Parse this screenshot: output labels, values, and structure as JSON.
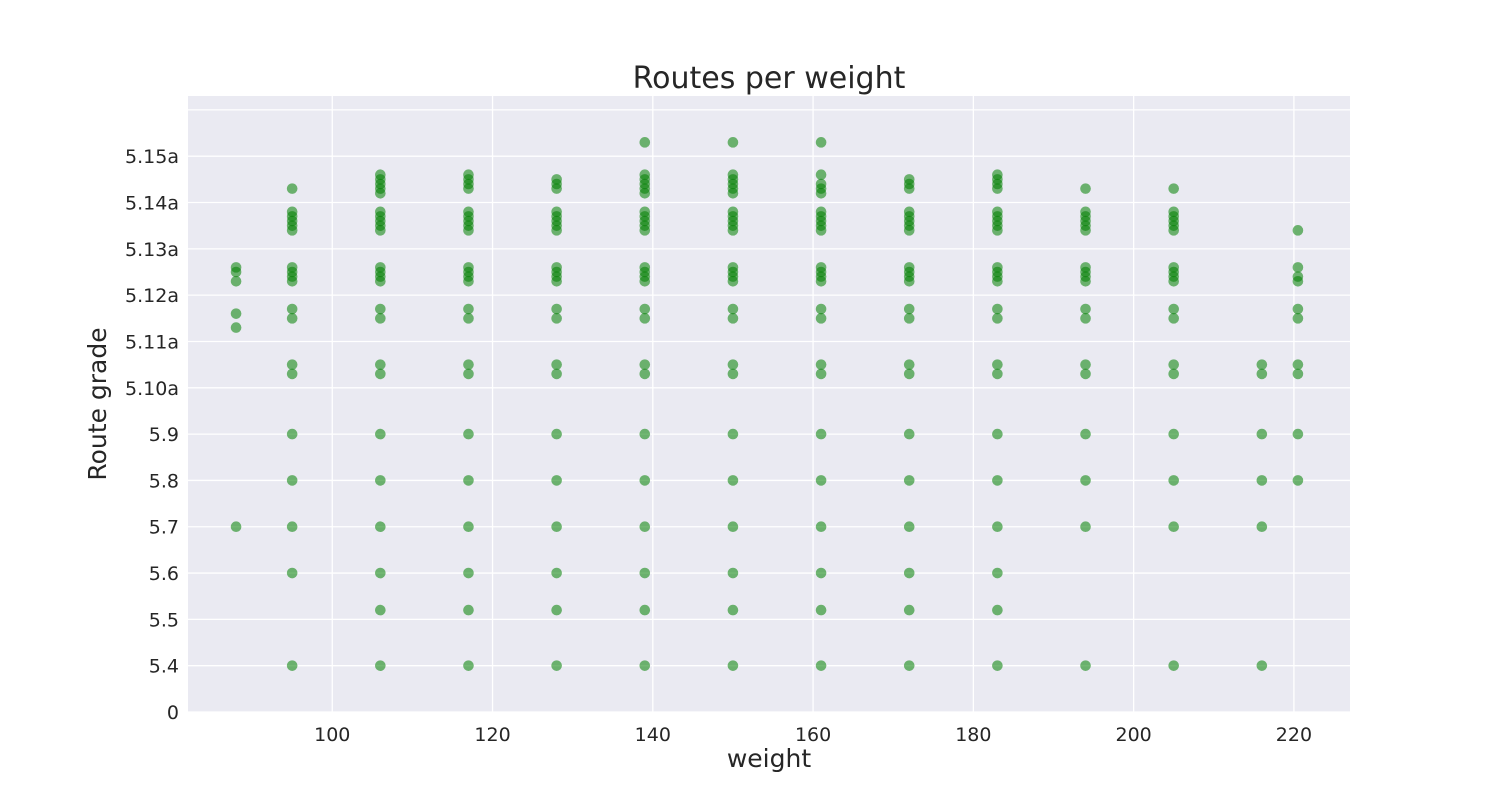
{
  "chart_data": {
    "type": "scatter",
    "title": "Routes per weight",
    "xlabel": "weight",
    "ylabel": "Route grade",
    "xlim": [
      82,
      227
    ],
    "ylim": [
      0,
      13.3
    ],
    "grid": true,
    "point_color": "#008000",
    "background_color": "#eaeaf2",
    "x_ticks": [
      100,
      120,
      140,
      160,
      180,
      200,
      220
    ],
    "y_ticks": [
      {
        "value": 0,
        "label": "0"
      },
      {
        "value": 1,
        "label": "5.4"
      },
      {
        "value": 2,
        "label": "5.5"
      },
      {
        "value": 3,
        "label": "5.6"
      },
      {
        "value": 4,
        "label": "5.7"
      },
      {
        "value": 5,
        "label": "5.8"
      },
      {
        "value": 6,
        "label": "5.9"
      },
      {
        "value": 7,
        "label": "5.10a"
      },
      {
        "value": 8,
        "label": "5.11a"
      },
      {
        "value": 9,
        "label": "5.12a"
      },
      {
        "value": 10,
        "label": "5.13a"
      },
      {
        "value": 11,
        "label": "5.14a"
      },
      {
        "value": 12,
        "label": "5.15a"
      },
      {
        "value": 13,
        "label": ""
      }
    ],
    "points": [
      {
        "x": 88,
        "y": [
          4,
          8.3,
          8.6,
          9.3,
          9.5,
          9.6
        ]
      },
      {
        "x": 95,
        "y": [
          1,
          3,
          4,
          5,
          6,
          7.3,
          7.5,
          8.5,
          8.7,
          9.3,
          9.4,
          9.5,
          9.6,
          10.4,
          10.5,
          10.6,
          10.7,
          10.8,
          11.3
        ]
      },
      {
        "x": 106,
        "y": [
          1,
          2.2,
          3,
          4,
          5,
          6,
          7.3,
          7.5,
          8.5,
          8.7,
          9.3,
          9.4,
          9.5,
          9.6,
          10.4,
          10.5,
          10.6,
          10.7,
          10.8,
          11.2,
          11.3,
          11.4,
          11.5,
          11.6
        ]
      },
      {
        "x": 117,
        "y": [
          1,
          2.2,
          3,
          4,
          5,
          6,
          7.3,
          7.5,
          8.5,
          8.7,
          9.3,
          9.4,
          9.5,
          9.6,
          10.4,
          10.5,
          10.6,
          10.7,
          10.8,
          11.3,
          11.4,
          11.5,
          11.6
        ]
      },
      {
        "x": 128,
        "y": [
          1,
          2.2,
          3,
          4,
          5,
          6,
          7.3,
          7.5,
          8.5,
          8.7,
          9.3,
          9.4,
          9.5,
          9.6,
          10.4,
          10.5,
          10.6,
          10.7,
          10.8,
          11.3,
          11.4,
          11.5
        ]
      },
      {
        "x": 139,
        "y": [
          1,
          2.2,
          3,
          4,
          5,
          6,
          7.3,
          7.5,
          8.5,
          8.7,
          9.3,
          9.4,
          9.5,
          9.6,
          10.4,
          10.5,
          10.6,
          10.7,
          10.8,
          11.2,
          11.3,
          11.4,
          11.5,
          11.6,
          12.3
        ]
      },
      {
        "x": 150,
        "y": [
          1,
          2.2,
          3,
          4,
          5,
          6,
          7.3,
          7.5,
          8.5,
          8.7,
          9.3,
          9.4,
          9.5,
          9.6,
          10.4,
          10.5,
          10.6,
          10.7,
          10.8,
          11.2,
          11.3,
          11.4,
          11.5,
          11.6,
          12.3
        ]
      },
      {
        "x": 161,
        "y": [
          1,
          2.2,
          3,
          4,
          5,
          6,
          7.3,
          7.5,
          8.5,
          8.7,
          9.3,
          9.4,
          9.5,
          9.6,
          10.4,
          10.5,
          10.6,
          10.7,
          10.8,
          11.2,
          11.3,
          11.4,
          11.6,
          12.3
        ]
      },
      {
        "x": 172,
        "y": [
          1,
          2.2,
          3,
          4,
          5,
          6,
          7.3,
          7.5,
          8.5,
          8.7,
          9.3,
          9.4,
          9.5,
          9.6,
          10.4,
          10.5,
          10.6,
          10.7,
          10.8,
          11.3,
          11.4,
          11.5
        ]
      },
      {
        "x": 183,
        "y": [
          1,
          2.2,
          3,
          4,
          5,
          6,
          7.3,
          7.5,
          8.5,
          8.7,
          9.3,
          9.4,
          9.5,
          9.6,
          10.4,
          10.5,
          10.6,
          10.7,
          10.8,
          11.3,
          11.4,
          11.5,
          11.6
        ]
      },
      {
        "x": 194,
        "y": [
          1,
          4,
          5,
          6,
          7.3,
          7.5,
          8.5,
          8.7,
          9.3,
          9.4,
          9.5,
          9.6,
          10.4,
          10.5,
          10.6,
          10.7,
          10.8,
          11.3
        ]
      },
      {
        "x": 205,
        "y": [
          1,
          4,
          5,
          6,
          7.3,
          7.5,
          8.5,
          8.7,
          9.3,
          9.4,
          9.5,
          9.6,
          10.4,
          10.5,
          10.6,
          10.7,
          10.8,
          11.3
        ]
      },
      {
        "x": 216,
        "y": [
          1,
          4,
          5,
          6,
          7.3,
          7.5
        ]
      },
      {
        "x": 220.5,
        "y": [
          5,
          6,
          7.3,
          7.5,
          8.5,
          8.7,
          9.3,
          9.4,
          9.6,
          10.4
        ]
      }
    ]
  }
}
